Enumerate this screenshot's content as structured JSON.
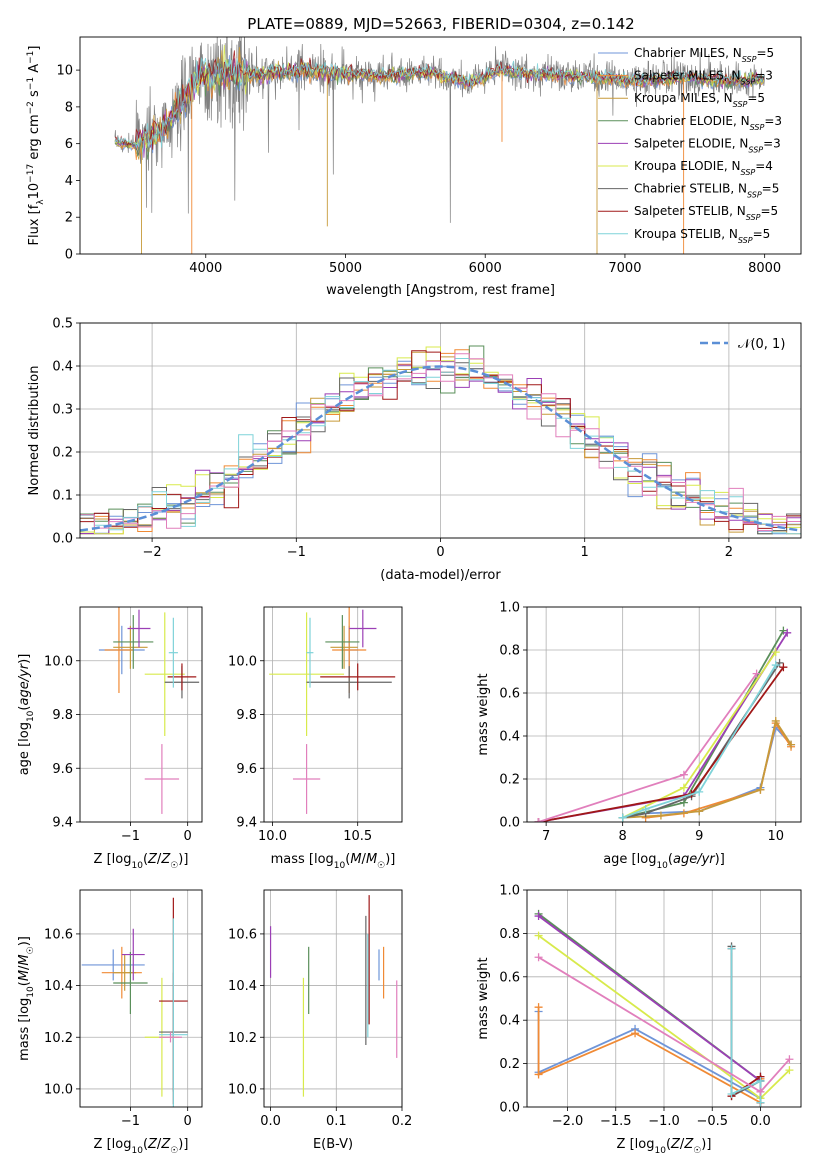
{
  "figure_title": "PLATE=0889, MJD=52663, FIBERID=0304, z=0.142",
  "colors": {
    "Chabrier MILES": "#6f95d8",
    "Salpeter MILES": "#f08a35",
    "Kroupa MILES": "#c79a3a",
    "Chabrier ELODIE": "#5a8f5a",
    "Salpeter ELODIE": "#9b3fb5",
    "Kroupa ELODIE": "#d8ea4c",
    "Chabrier STELIB": "#666666",
    "Salpeter STELIB": "#a01818",
    "Kroupa STELIB": "#7fd3d9",
    "pink": "#e17fbc",
    "normal": "#5b8fd6"
  },
  "chart_data": [
    {
      "id": "spectrum",
      "type": "line",
      "title": "PLATE=0889, MJD=52663, FIBERID=0304, z=0.142",
      "xlabel": "wavelength [Angstrom, rest frame]",
      "ylabel": "Flux [f_λ10^-17 erg cm^-2 s^-1 A^-1]",
      "xlim": [
        3100,
        8260
      ],
      "ylim": [
        0,
        11.8
      ],
      "xticks": [
        4000,
        5000,
        6000,
        7000,
        8000
      ],
      "yticks": [
        0,
        2,
        4,
        6,
        8,
        10
      ],
      "grid": false,
      "legend_position": "top-right",
      "data_color": "#808080",
      "data_anchors": [
        [
          3350,
          6.1
        ],
        [
          3500,
          5.9
        ],
        [
          3700,
          6.8
        ],
        [
          3830,
          8.3
        ],
        [
          3950,
          9.6
        ],
        [
          4100,
          9.9
        ],
        [
          4400,
          9.7
        ],
        [
          4700,
          10.0
        ],
        [
          5000,
          9.8
        ],
        [
          5300,
          9.7
        ],
        [
          5600,
          9.9
        ],
        [
          5900,
          9.3
        ],
        [
          6100,
          10.0
        ],
        [
          6300,
          9.8
        ],
        [
          6600,
          9.7
        ],
        [
          6800,
          9.6
        ],
        [
          7100,
          9.4
        ],
        [
          7400,
          9.6
        ],
        [
          7700,
          9.4
        ],
        [
          8000,
          9.5
        ]
      ],
      "series": [
        {
          "name": "Chabrier MILES",
          "n_ssp": "5"
        },
        {
          "name": "Salpeter MILES",
          "n_ssp": "3"
        },
        {
          "name": "Kroupa MILES",
          "n_ssp": "5"
        },
        {
          "name": "Chabrier ELODIE",
          "n_ssp": "3"
        },
        {
          "name": "Salpeter ELODIE",
          "n_ssp": "3"
        },
        {
          "name": "Kroupa ELODIE",
          "n_ssp": "4"
        },
        {
          "name": "Chabrier STELIB",
          "n_ssp": "5"
        },
        {
          "name": "Salpeter STELIB",
          "n_ssp": "5"
        },
        {
          "name": "Kroupa STELIB",
          "n_ssp": "5"
        }
      ]
    },
    {
      "id": "residuals",
      "type": "line",
      "xlabel": "(data-model)/error",
      "ylabel": "Normed distribution",
      "xlim": [
        -2.5,
        2.5
      ],
      "ylim": [
        0,
        0.5
      ],
      "xticks": [
        -2,
        -1,
        0,
        1,
        2
      ],
      "yticks": [
        0.0,
        0.1,
        0.2,
        0.3,
        0.4,
        0.5
      ],
      "grid": true,
      "legend_position": "top-right",
      "legend": "𝒩(0, 1)",
      "bin_width": 0.1,
      "normal_curve": {
        "mean": 0,
        "sigma": 1
      }
    },
    {
      "id": "z-age",
      "type": "scatter",
      "xlabel": "Z [log₁₀(Z/Z☉)]",
      "ylabel": "age [log₁₀(age/yr)]",
      "xlim": [
        -1.88,
        0.25
      ],
      "ylim": [
        9.4,
        10.2
      ],
      "xticks": [
        -1,
        0
      ],
      "yticks": [
        9.4,
        9.6,
        9.8,
        10.0
      ],
      "grid": true,
      "points": [
        {
          "series": "Chabrier MILES",
          "x": -1.15,
          "xerr": 0.4,
          "y": 10.04,
          "yerr": 0.09
        },
        {
          "series": "Salpeter MILES",
          "x": -1.2,
          "xerr": 0.25,
          "y": 10.04,
          "yerr": 0.16
        },
        {
          "series": "Kroupa MILES",
          "x": -1.0,
          "xerr": 0.3,
          "y": 10.05,
          "yerr": 0.08
        },
        {
          "series": "Chabrier ELODIE",
          "x": -0.95,
          "xerr": 0.35,
          "y": 10.07,
          "yerr": 0.1
        },
        {
          "series": "Salpeter ELODIE",
          "x": -0.85,
          "xerr": 0.2,
          "y": 10.12,
          "yerr": 0.07
        },
        {
          "series": "Kroupa ELODIE",
          "x": -0.4,
          "xerr": 0.35,
          "y": 9.95,
          "yerr": 0.23
        },
        {
          "series": "Chabrier STELIB",
          "x": -0.1,
          "xerr": 0.3,
          "y": 9.92,
          "yerr": 0.06
        },
        {
          "series": "Salpeter STELIB",
          "x": -0.1,
          "xerr": 0.25,
          "y": 9.94,
          "yerr": 0.05
        },
        {
          "series": "Kroupa STELIB",
          "x": -0.25,
          "xerr": 0.08,
          "y": 10.03,
          "yerr": 0.13
        },
        {
          "series": "pink",
          "x": -0.45,
          "xerr": 0.3,
          "y": 9.56,
          "yerr": 0.13
        }
      ]
    },
    {
      "id": "mass-age",
      "type": "scatter",
      "xlabel": "mass [log₁₀(M/M☉)]",
      "ylabel": "",
      "xlim": [
        9.95,
        10.76
      ],
      "ylim": [
        9.4,
        10.2
      ],
      "xticks": [
        10.0,
        10.5
      ],
      "yticks": [
        9.4,
        9.6,
        9.8,
        10.0
      ],
      "grid": true,
      "points": [
        {
          "series": "Chabrier MILES",
          "x": 10.45,
          "xerr": 0.05,
          "y": 10.04,
          "yerr": 0.09
        },
        {
          "series": "Salpeter MILES",
          "x": 10.45,
          "xerr": 0.1,
          "y": 10.04,
          "yerr": 0.16
        },
        {
          "series": "Kroupa MILES",
          "x": 10.42,
          "xerr": 0.08,
          "y": 10.05,
          "yerr": 0.08
        },
        {
          "series": "Chabrier ELODIE",
          "x": 10.41,
          "xerr": 0.1,
          "y": 10.07,
          "yerr": 0.1
        },
        {
          "series": "Salpeter ELODIE",
          "x": 10.53,
          "xerr": 0.08,
          "y": 10.12,
          "yerr": 0.07
        },
        {
          "series": "Kroupa ELODIE",
          "x": 10.2,
          "xerr": 0.22,
          "y": 9.95,
          "yerr": 0.23
        },
        {
          "series": "Chabrier STELIB",
          "x": 10.45,
          "xerr": 0.25,
          "y": 9.92,
          "yerr": 0.06
        },
        {
          "series": "Salpeter STELIB",
          "x": 10.5,
          "xerr": 0.22,
          "y": 9.94,
          "yerr": 0.05
        },
        {
          "series": "Kroupa STELIB",
          "x": 10.22,
          "xerr": 0.02,
          "y": 10.03,
          "yerr": 0.13
        },
        {
          "series": "pink",
          "x": 10.2,
          "xerr": 0.08,
          "y": 9.56,
          "yerr": 0.13
        }
      ]
    },
    {
      "id": "age-weight",
      "type": "line",
      "xlabel": "age [log₁₀(age/yr)]",
      "ylabel": "mass weight",
      "xlim": [
        6.75,
        10.33
      ],
      "ylim": [
        0,
        1.0
      ],
      "xticks": [
        7,
        8,
        9,
        10
      ],
      "yticks": [
        0.0,
        0.2,
        0.4,
        0.6,
        0.8,
        1.0
      ],
      "grid": true,
      "series": [
        {
          "name": "Chabrier MILES",
          "x": [
            8.0,
            8.3,
            9.0,
            9.8,
            10.0,
            10.2
          ],
          "y": [
            0.02,
            0.04,
            0.05,
            0.16,
            0.44,
            0.36
          ]
        },
        {
          "name": "Salpeter MILES",
          "x": [
            8.3,
            8.8,
            9.8,
            10.0,
            10.2
          ],
          "y": [
            0.02,
            0.04,
            0.15,
            0.46,
            0.35
          ]
        },
        {
          "name": "Kroupa MILES",
          "x": [
            8.0,
            8.5,
            9.0,
            9.8,
            10.0,
            10.2
          ],
          "y": [
            0.02,
            0.03,
            0.05,
            0.15,
            0.47,
            0.36
          ]
        },
        {
          "name": "Chabrier ELODIE",
          "x": [
            8.0,
            8.8,
            10.1
          ],
          "y": [
            0.02,
            0.09,
            0.89
          ]
        },
        {
          "name": "Salpeter ELODIE",
          "x": [
            6.9,
            8.8,
            10.15
          ],
          "y": [
            0.0,
            0.12,
            0.88
          ]
        },
        {
          "name": "Kroupa ELODIE",
          "x": [
            8.0,
            8.8,
            10.0
          ],
          "y": [
            0.02,
            0.16,
            0.79
          ]
        },
        {
          "name": "Chabrier STELIB",
          "x": [
            8.0,
            8.3,
            8.9,
            10.05
          ],
          "y": [
            0.02,
            0.04,
            0.12,
            0.74
          ]
        },
        {
          "name": "Salpeter STELIB",
          "x": [
            6.9,
            8.9,
            10.1
          ],
          "y": [
            0.0,
            0.13,
            0.72
          ]
        },
        {
          "name": "Kroupa STELIB",
          "x": [
            8.0,
            8.3,
            9.0,
            10.0
          ],
          "y": [
            0.02,
            0.06,
            0.14,
            0.73
          ]
        },
        {
          "name": "pink",
          "x": [
            6.9,
            8.8,
            9.75
          ],
          "y": [
            0.0,
            0.22,
            0.69
          ]
        }
      ]
    },
    {
      "id": "z-mass",
      "type": "scatter",
      "xlabel": "Z [log₁₀(Z/Z☉)]",
      "ylabel": "mass [log₁₀(M/M☉)]",
      "xlim": [
        -1.88,
        0.25
      ],
      "ylim": [
        9.93,
        10.77
      ],
      "xticks": [
        -1,
        0
      ],
      "yticks": [
        10.0,
        10.2,
        10.4,
        10.6
      ],
      "grid": true,
      "points": [
        {
          "series": "Chabrier MILES",
          "x": -1.3,
          "xerr": 0.55,
          "y": 10.48,
          "yerr": 0.06
        },
        {
          "series": "Salpeter MILES",
          "x": -1.15,
          "xerr": 0.35,
          "y": 10.45,
          "yerr": 0.1
        },
        {
          "series": "Kroupa MILES",
          "x": -1.1,
          "xerr": 0.2,
          "y": 10.45,
          "yerr": 0.07
        },
        {
          "series": "Chabrier ELODIE",
          "x": -1.0,
          "xerr": 0.3,
          "y": 10.41,
          "yerr": 0.12
        },
        {
          "series": "Salpeter ELODIE",
          "x": -0.95,
          "xerr": 0.2,
          "y": 10.52,
          "yerr": 0.1
        },
        {
          "series": "Kroupa ELODIE",
          "x": -0.45,
          "xerr": 0.3,
          "y": 10.2,
          "yerr": 0.23
        },
        {
          "series": "Chabrier STELIB",
          "x": -0.25,
          "xerr": 0.25,
          "y": 10.22,
          "yerr": 0.23
        },
        {
          "series": "Salpeter STELIB",
          "x": -0.25,
          "xerr": 0.25,
          "y": 10.34,
          "yerr": 0.4
        },
        {
          "series": "Kroupa STELIB",
          "x": -0.25,
          "xerr": 0.25,
          "y": 10.21,
          "yerr": 0.45
        },
        {
          "series": "pink",
          "x": -0.3,
          "xerr": 0.2,
          "y": 10.2,
          "yerr": 0.02
        }
      ]
    },
    {
      "id": "ebv-mass",
      "type": "scatter",
      "xlabel": "E(B-V)",
      "ylabel": "",
      "xlim": [
        -0.01,
        0.2
      ],
      "ylim": [
        9.93,
        10.77
      ],
      "xticks": [
        0.0,
        0.1,
        0.2
      ],
      "yticks": [
        10.0,
        10.2,
        10.4,
        10.6
      ],
      "grid": true,
      "points": [
        {
          "series": "Chabrier MILES",
          "x": 0.165,
          "xerr": 0.0,
          "y": 10.48,
          "yerr": 0.06
        },
        {
          "series": "Salpeter MILES",
          "x": 0.172,
          "xerr": 0.0,
          "y": 10.45,
          "yerr": 0.1
        },
        {
          "series": "Chabrier ELODIE",
          "x": 0.058,
          "xerr": 0.0,
          "y": 10.42,
          "yerr": 0.13
        },
        {
          "series": "Salpeter ELODIE",
          "x": 0.0,
          "xerr": 0.0,
          "y": 10.53,
          "yerr": 0.1
        },
        {
          "series": "Kroupa ELODIE",
          "x": 0.05,
          "xerr": 0.0,
          "y": 10.2,
          "yerr": 0.23
        },
        {
          "series": "Chabrier STELIB",
          "x": 0.145,
          "xerr": 0.0,
          "y": 10.42,
          "yerr": 0.25
        },
        {
          "series": "Salpeter STELIB",
          "x": 0.15,
          "xerr": 0.0,
          "y": 10.5,
          "yerr": 0.25
        },
        {
          "series": "Kroupa STELIB",
          "x": 0.148,
          "xerr": 0.0,
          "y": 10.4,
          "yerr": 0.2
        },
        {
          "series": "pink",
          "x": 0.192,
          "xerr": 0.0,
          "y": 10.27,
          "yerr": 0.15
        }
      ]
    },
    {
      "id": "z-weight",
      "type": "line",
      "xlabel": "Z [log₁₀(Z/Z☉)]",
      "ylabel": "mass weight",
      "xlim": [
        -2.42,
        0.42
      ],
      "ylim": [
        0,
        1.0
      ],
      "xticks": [
        -2.0,
        -1.5,
        -1.0,
        -0.5,
        0.0
      ],
      "yticks": [
        0.0,
        0.2,
        0.4,
        0.6,
        0.8,
        1.0
      ],
      "grid": true,
      "series": [
        {
          "name": "Chabrier MILES",
          "x": [
            -2.3,
            -2.3,
            -1.3,
            0.0,
            0.0
          ],
          "y": [
            0.44,
            0.16,
            0.36,
            0.04,
            0.14
          ]
        },
        {
          "name": "Salpeter MILES",
          "x": [
            -2.3,
            -2.3,
            -1.3,
            0.0,
            0.0
          ],
          "y": [
            0.46,
            0.15,
            0.34,
            0.02,
            0.13
          ]
        },
        {
          "name": "Chabrier ELODIE",
          "x": [
            -2.3,
            0.0
          ],
          "y": [
            0.89,
            0.12
          ]
        },
        {
          "name": "Salpeter ELODIE",
          "x": [
            -2.3,
            0.0
          ],
          "y": [
            0.88,
            0.12
          ]
        },
        {
          "name": "Kroupa ELODIE",
          "x": [
            -2.3,
            0.0,
            0.3
          ],
          "y": [
            0.79,
            0.04,
            0.17
          ]
        },
        {
          "name": "Chabrier STELIB",
          "x": [
            -0.3,
            -0.3,
            0.0,
            0.0
          ],
          "y": [
            0.74,
            0.05,
            0.12,
            0.02
          ]
        },
        {
          "name": "Salpeter STELIB",
          "x": [
            -0.3,
            -0.3,
            0.0,
            0.0
          ],
          "y": [
            0.73,
            0.05,
            0.14,
            0.02
          ]
        },
        {
          "name": "Kroupa STELIB",
          "x": [
            -0.3,
            -0.3,
            0.0,
            0.0
          ],
          "y": [
            0.73,
            0.06,
            0.12,
            0.02
          ]
        },
        {
          "name": "pink",
          "x": [
            -2.3,
            0.0,
            0.3
          ],
          "y": [
            0.69,
            0.07,
            0.22
          ]
        }
      ]
    }
  ]
}
